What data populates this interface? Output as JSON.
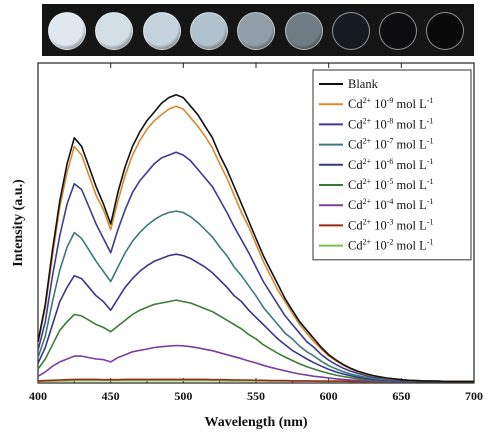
{
  "colors": {
    "wells": [
      "#dfe8ee",
      "#d2dfe7",
      "#c4d3de",
      "#b0c2cd",
      "#8f9ea8",
      "#707c83",
      "#161b21",
      "#0d0d0f",
      "#0a0a0b"
    ]
  },
  "chart_data": {
    "type": "line",
    "xlabel": "Wavelength (nm)",
    "ylabel": "Intensity (a.u.)",
    "xlim": [
      400,
      700
    ],
    "ylim": [
      0,
      1
    ],
    "x_ticks": [
      "400",
      "450",
      "500",
      "550",
      "600",
      "650",
      "700"
    ],
    "y_ticks_shown": false,
    "grid": false,
    "legend_position": "top-right",
    "x": [
      400,
      405,
      410,
      415,
      420,
      425,
      430,
      435,
      440,
      445,
      450,
      455,
      460,
      465,
      470,
      475,
      480,
      485,
      490,
      495,
      500,
      505,
      510,
      515,
      520,
      525,
      530,
      535,
      540,
      545,
      550,
      555,
      560,
      565,
      570,
      575,
      580,
      585,
      590,
      595,
      600,
      605,
      610,
      615,
      620,
      625,
      630,
      635,
      640,
      645,
      650,
      655,
      660,
      665,
      670,
      675,
      680,
      685,
      690,
      695,
      700
    ],
    "series": [
      {
        "name": "Blank",
        "color": "#111111",
        "legend": {
          "prefix": "Blank",
          "sup": "",
          "exp": "",
          "unit": ""
        },
        "values": [
          0.14,
          0.27,
          0.46,
          0.63,
          0.76,
          0.85,
          0.82,
          0.75,
          0.68,
          0.62,
          0.55,
          0.66,
          0.75,
          0.82,
          0.87,
          0.91,
          0.94,
          0.97,
          0.99,
          1.0,
          0.99,
          0.96,
          0.93,
          0.89,
          0.85,
          0.79,
          0.74,
          0.68,
          0.62,
          0.56,
          0.5,
          0.44,
          0.39,
          0.34,
          0.29,
          0.25,
          0.21,
          0.18,
          0.15,
          0.12,
          0.095,
          0.077,
          0.061,
          0.048,
          0.038,
          0.03,
          0.023,
          0.018,
          0.014,
          0.011,
          0.008,
          0.006,
          0.005,
          0.004,
          0.003,
          0.003,
          0.002,
          0.002,
          0.002,
          0.002,
          0.002
        ]
      },
      {
        "name": "Cd2+ 10-9 mol L-1",
        "color": "#d98a2b",
        "legend": {
          "prefix": "Cd",
          "sup": "2+",
          "exp": "-9",
          "unit": "1"
        },
        "values": [
          0.135,
          0.26,
          0.44,
          0.61,
          0.73,
          0.82,
          0.79,
          0.72,
          0.65,
          0.6,
          0.53,
          0.63,
          0.72,
          0.79,
          0.84,
          0.88,
          0.91,
          0.93,
          0.95,
          0.96,
          0.95,
          0.92,
          0.89,
          0.855,
          0.815,
          0.76,
          0.71,
          0.65,
          0.59,
          0.54,
          0.48,
          0.42,
          0.37,
          0.32,
          0.28,
          0.24,
          0.2,
          0.17,
          0.14,
          0.115,
          0.09,
          0.074,
          0.058,
          0.046,
          0.036,
          0.028,
          0.022,
          0.017,
          0.013,
          0.01,
          0.008,
          0.006,
          0.005,
          0.004,
          0.003,
          0.003,
          0.002,
          0.002,
          0.002,
          0.002,
          0.002
        ]
      },
      {
        "name": "Cd2+ 10-8 mol L-1",
        "color": "#3c3c96",
        "legend": {
          "prefix": "Cd",
          "sup": "2+",
          "exp": "-8",
          "unit": "1"
        },
        "values": [
          0.11,
          0.21,
          0.37,
          0.51,
          0.62,
          0.69,
          0.67,
          0.61,
          0.55,
          0.5,
          0.45,
          0.53,
          0.6,
          0.66,
          0.7,
          0.73,
          0.76,
          0.78,
          0.79,
          0.8,
          0.79,
          0.77,
          0.74,
          0.71,
          0.68,
          0.635,
          0.59,
          0.54,
          0.495,
          0.45,
          0.4,
          0.35,
          0.31,
          0.27,
          0.23,
          0.2,
          0.17,
          0.14,
          0.12,
          0.095,
          0.076,
          0.061,
          0.048,
          0.038,
          0.03,
          0.023,
          0.018,
          0.014,
          0.011,
          0.008,
          0.006,
          0.005,
          0.004,
          0.003,
          0.003,
          0.002,
          0.002,
          0.002,
          0.002,
          0.002,
          0.002
        ]
      },
      {
        "name": "Cd2+ 10-7 mol L-1",
        "color": "#3d7a7a",
        "legend": {
          "prefix": "Cd",
          "sup": "2+",
          "exp": "-7",
          "unit": "1"
        },
        "values": [
          0.085,
          0.16,
          0.28,
          0.39,
          0.47,
          0.52,
          0.5,
          0.46,
          0.42,
          0.385,
          0.35,
          0.4,
          0.45,
          0.49,
          0.52,
          0.545,
          0.565,
          0.58,
          0.59,
          0.595,
          0.59,
          0.575,
          0.555,
          0.53,
          0.505,
          0.47,
          0.44,
          0.4,
          0.37,
          0.335,
          0.3,
          0.26,
          0.23,
          0.2,
          0.17,
          0.15,
          0.125,
          0.105,
          0.09,
          0.072,
          0.057,
          0.046,
          0.036,
          0.028,
          0.022,
          0.017,
          0.013,
          0.01,
          0.008,
          0.006,
          0.005,
          0.004,
          0.003,
          0.003,
          0.002,
          0.002,
          0.002,
          0.002,
          0.002,
          0.002,
          0.002
        ]
      },
      {
        "name": "Cd2+ 10-6 mol L-1",
        "color": "#38388a",
        "legend": {
          "prefix": "Cd",
          "sup": "2+",
          "exp": "-6",
          "unit": "1"
        },
        "values": [
          0.065,
          0.12,
          0.2,
          0.28,
          0.33,
          0.37,
          0.36,
          0.33,
          0.3,
          0.28,
          0.25,
          0.29,
          0.33,
          0.36,
          0.385,
          0.405,
          0.42,
          0.43,
          0.44,
          0.445,
          0.44,
          0.43,
          0.415,
          0.4,
          0.38,
          0.355,
          0.33,
          0.3,
          0.28,
          0.25,
          0.225,
          0.2,
          0.175,
          0.15,
          0.13,
          0.11,
          0.095,
          0.08,
          0.067,
          0.055,
          0.044,
          0.035,
          0.028,
          0.022,
          0.017,
          0.013,
          0.01,
          0.008,
          0.006,
          0.005,
          0.004,
          0.003,
          0.003,
          0.002,
          0.002,
          0.002,
          0.002,
          0.002,
          0.002,
          0.002,
          0.002
        ]
      },
      {
        "name": "Cd2+ 10-5 mol L-1",
        "color": "#3e7a3a",
        "legend": {
          "prefix": "Cd",
          "sup": "2+",
          "exp": "-5",
          "unit": "1"
        },
        "values": [
          0.045,
          0.08,
          0.13,
          0.18,
          0.21,
          0.235,
          0.23,
          0.215,
          0.2,
          0.19,
          0.175,
          0.195,
          0.215,
          0.235,
          0.25,
          0.26,
          0.27,
          0.275,
          0.28,
          0.285,
          0.28,
          0.275,
          0.265,
          0.255,
          0.245,
          0.23,
          0.215,
          0.2,
          0.185,
          0.165,
          0.15,
          0.13,
          0.115,
          0.1,
          0.087,
          0.075,
          0.063,
          0.053,
          0.045,
          0.037,
          0.03,
          0.024,
          0.019,
          0.015,
          0.012,
          0.009,
          0.007,
          0.006,
          0.005,
          0.004,
          0.003,
          0.003,
          0.002,
          0.002,
          0.002,
          0.002,
          0.002,
          0.002,
          0.002,
          0.002,
          0.002
        ]
      },
      {
        "name": "Cd2+ 10-4 mol L-1",
        "color": "#7a3f9a",
        "legend": {
          "prefix": "Cd",
          "sup": "2+",
          "exp": "-4",
          "unit": "1"
        },
        "values": [
          0.02,
          0.035,
          0.055,
          0.07,
          0.08,
          0.09,
          0.09,
          0.085,
          0.08,
          0.078,
          0.07,
          0.085,
          0.095,
          0.105,
          0.11,
          0.115,
          0.12,
          0.123,
          0.125,
          0.127,
          0.126,
          0.123,
          0.119,
          0.114,
          0.109,
          0.102,
          0.095,
          0.088,
          0.081,
          0.073,
          0.066,
          0.058,
          0.051,
          0.045,
          0.039,
          0.033,
          0.028,
          0.024,
          0.02,
          0.017,
          0.014,
          0.011,
          0.009,
          0.007,
          0.006,
          0.005,
          0.004,
          0.003,
          0.003,
          0.002,
          0.002,
          0.002,
          0.002,
          0.002,
          0.002,
          0.002,
          0.002,
          0.002,
          0.002,
          0.002,
          0.002
        ]
      },
      {
        "name": "Cd2+ 10-3 mol L-1",
        "color": "#9a2a1a",
        "legend": {
          "prefix": "Cd",
          "sup": "2+",
          "exp": "-3",
          "unit": "1"
        },
        "values": [
          0.004,
          0.005,
          0.006,
          0.007,
          0.008,
          0.009,
          0.009,
          0.009,
          0.009,
          0.008,
          0.008,
          0.008,
          0.009,
          0.009,
          0.009,
          0.009,
          0.009,
          0.009,
          0.009,
          0.009,
          0.009,
          0.009,
          0.009,
          0.009,
          0.008,
          0.008,
          0.008,
          0.007,
          0.007,
          0.007,
          0.006,
          0.006,
          0.005,
          0.005,
          0.005,
          0.004,
          0.004,
          0.004,
          0.003,
          0.003,
          0.003,
          0.003,
          0.003,
          0.002,
          0.002,
          0.002,
          0.002,
          0.002,
          0.002,
          0.002,
          0.002,
          0.002,
          0.002,
          0.002,
          0.002,
          0.002,
          0.002,
          0.002,
          0.002,
          0.002,
          0.002
        ]
      },
      {
        "name": "Cd2+ 10-2 mol L-1",
        "color": "#7cc24a",
        "legend": {
          "prefix": "Cd",
          "sup": "2+",
          "exp": "-2",
          "unit": "1"
        },
        "values": [
          0.002,
          0.003,
          0.003,
          0.004,
          0.004,
          0.005,
          0.005,
          0.005,
          0.005,
          0.005,
          0.005,
          0.005,
          0.005,
          0.005,
          0.005,
          0.005,
          0.005,
          0.005,
          0.005,
          0.005,
          0.005,
          0.005,
          0.005,
          0.005,
          0.005,
          0.005,
          0.004,
          0.004,
          0.004,
          0.004,
          0.004,
          0.004,
          0.003,
          0.003,
          0.003,
          0.003,
          0.003,
          0.003,
          0.003,
          0.002,
          0.002,
          0.002,
          0.002,
          0.002,
          0.002,
          0.002,
          0.002,
          0.002,
          0.002,
          0.002,
          0.002,
          0.002,
          0.002,
          0.002,
          0.002,
          0.002,
          0.002,
          0.002,
          0.002,
          0.002,
          0.002
        ]
      }
    ]
  }
}
